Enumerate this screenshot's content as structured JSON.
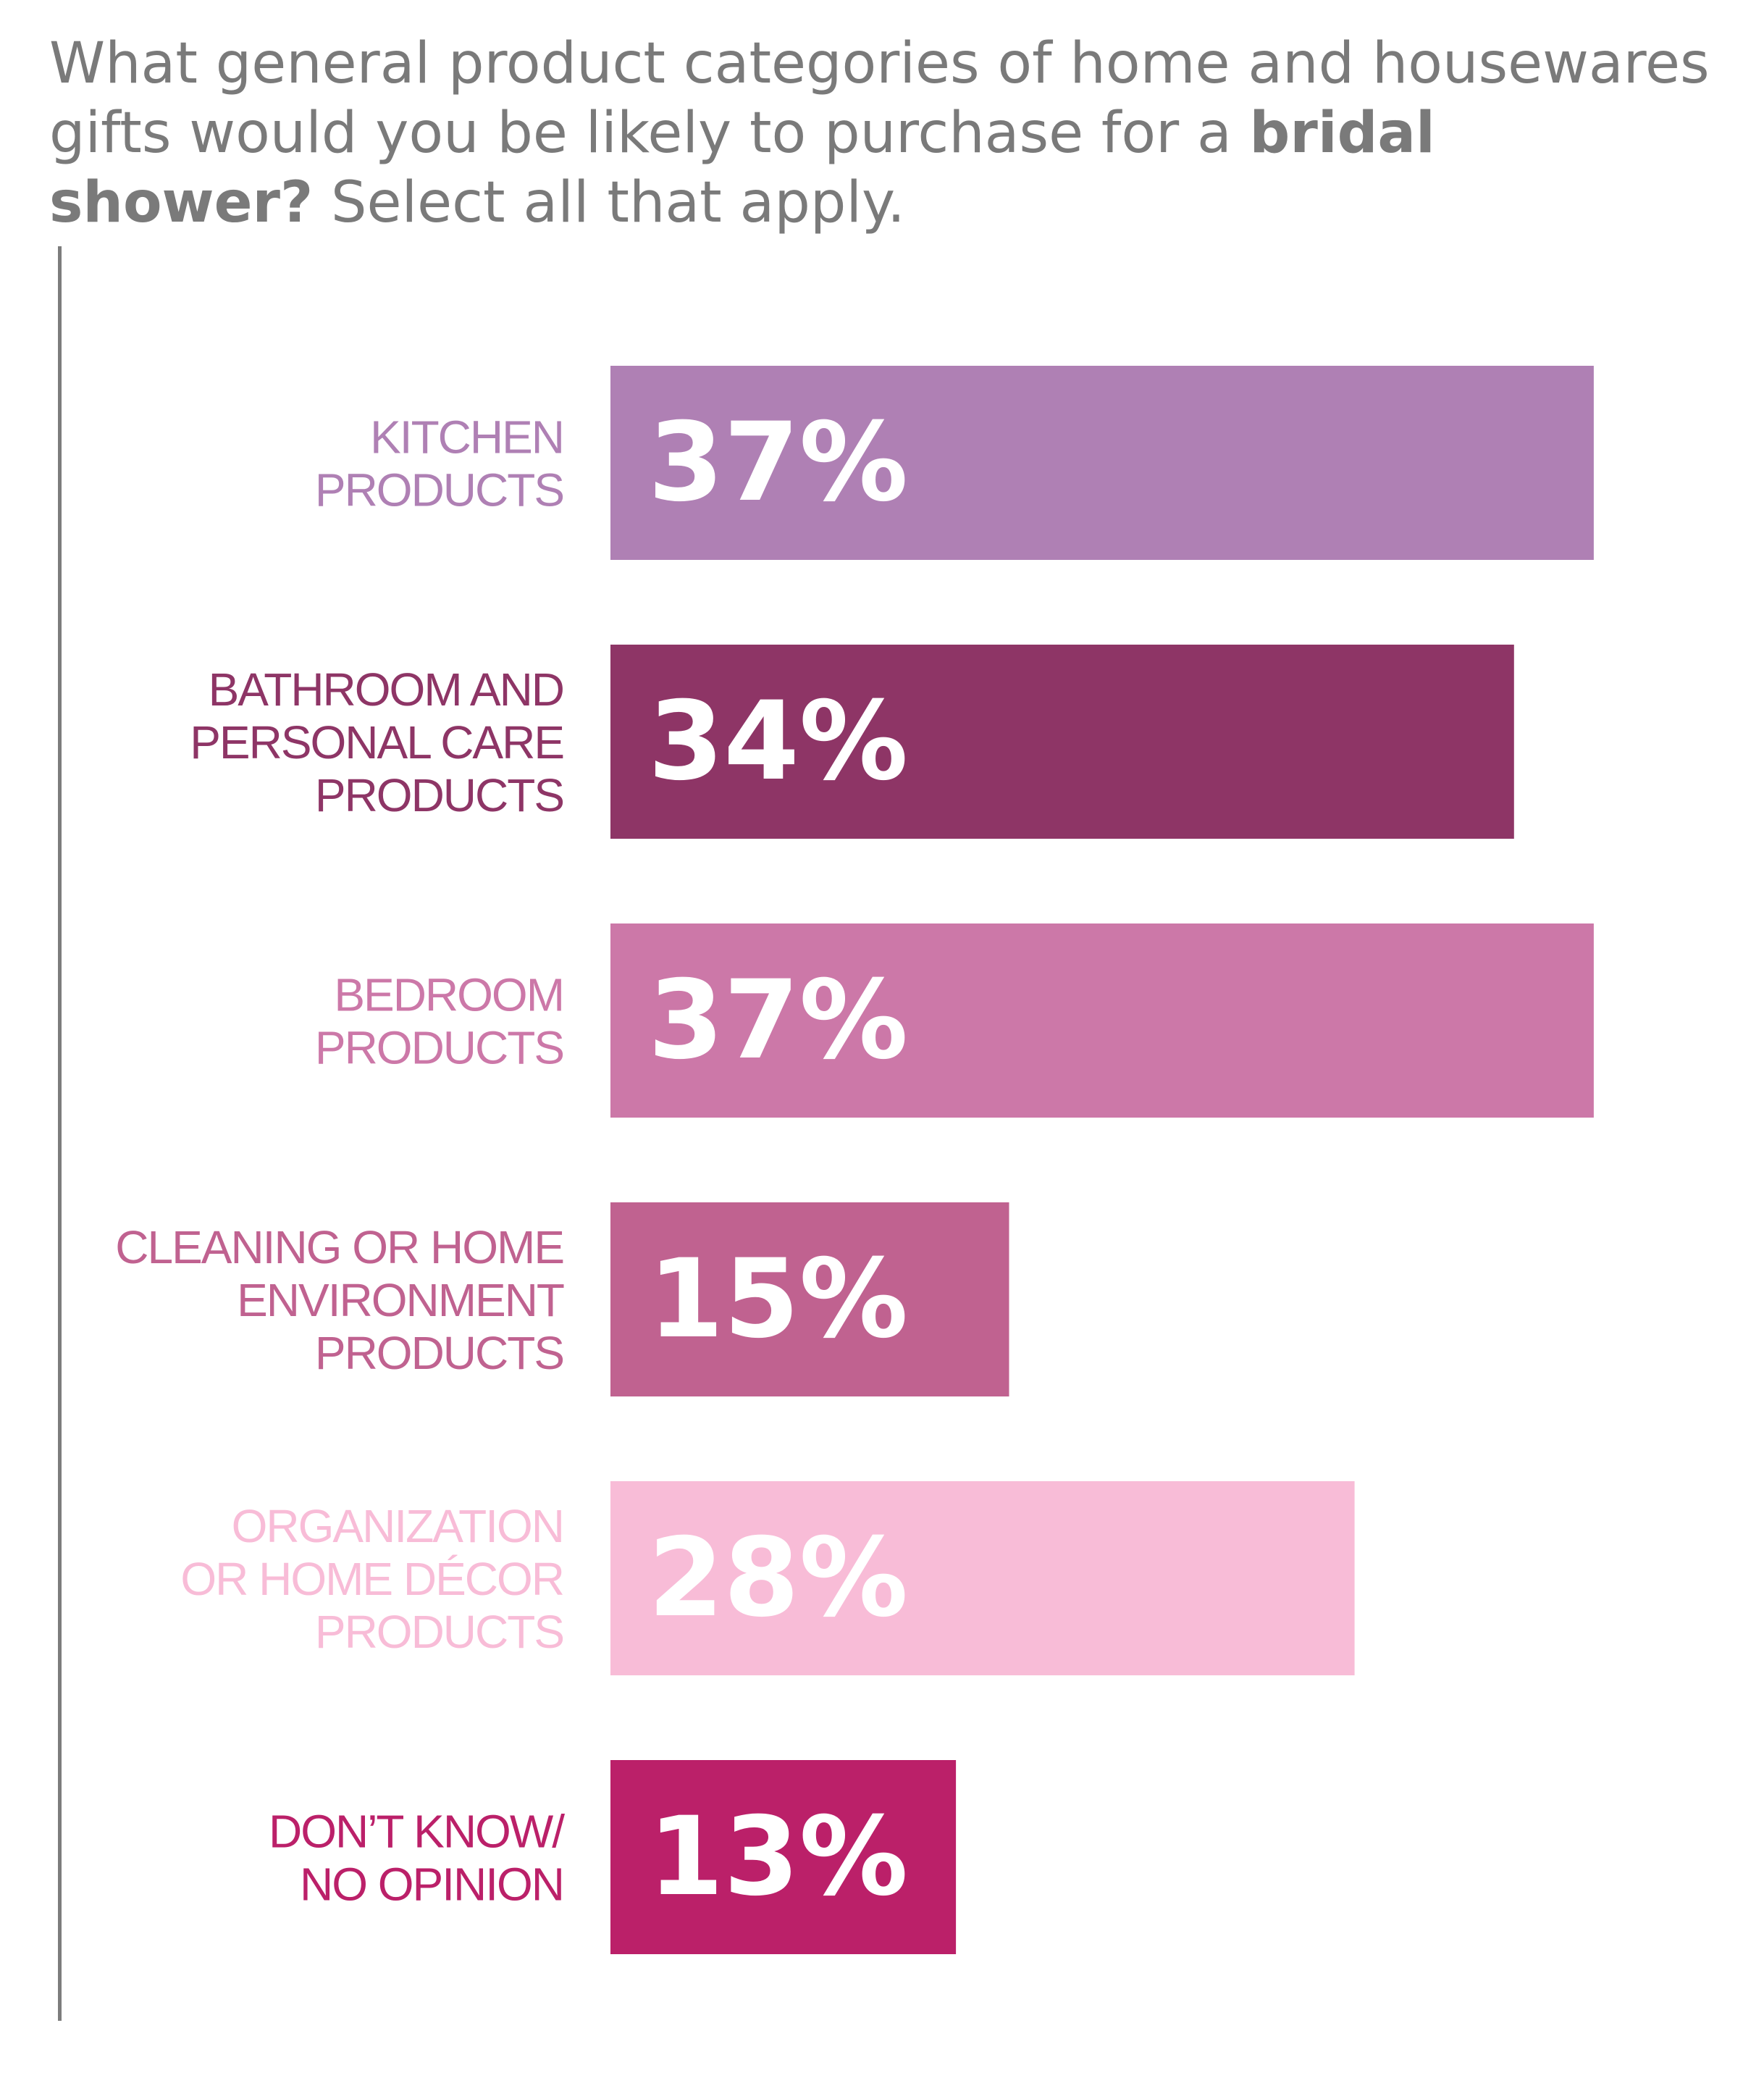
{
  "title": {
    "part1": "What general product categories of home and housewares gifts would you be likely to purchase for a ",
    "bold": "bridal shower?",
    "part2": " Select all that apply."
  },
  "chart_data": {
    "type": "bar",
    "orientation": "horizontal",
    "title": "What general product categories of home and housewares gifts would you be likely to purchase for a bridal shower? Select all that apply.",
    "categories": [
      "KITCHEN PRODUCTS",
      "BATHROOM AND PERSONAL CARE PRODUCTS",
      "BEDROOM PRODUCTS",
      "CLEANING OR HOME ENVIRONMENT PRODUCTS",
      "ORGANIZATION OR HOME DÉCOR PRODUCTS",
      "DON’T KNOW/ NO OPINION"
    ],
    "category_lines": [
      [
        "KITCHEN",
        "PRODUCTS"
      ],
      [
        "BATHROOM AND",
        "PERSONAL CARE",
        "PRODUCTS"
      ],
      [
        "BEDROOM",
        "PRODUCTS"
      ],
      [
        "CLEANING OR HOME",
        "ENVIRONMENT",
        "PRODUCTS"
      ],
      [
        "ORGANIZATION",
        "OR HOME DÉCOR",
        "PRODUCTS"
      ],
      [
        "DON’T KNOW/",
        "NO OPINION"
      ]
    ],
    "values": [
      37,
      34,
      37,
      15,
      28,
      13
    ],
    "value_labels": [
      "37%",
      "34%",
      "37%",
      "15%",
      "28%",
      "13%"
    ],
    "colors": [
      "#af80b4",
      "#8e3566",
      "#cc78a8",
      "#c06290",
      "#f8bcd7",
      "#bb2069"
    ],
    "xlabel": "",
    "ylabel": "",
    "grid": false,
    "legend": "none"
  }
}
